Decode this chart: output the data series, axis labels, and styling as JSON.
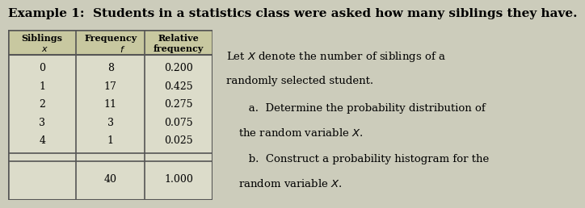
{
  "title": "Example 1:  Students in a statistics class were asked how many siblings they have.",
  "title_fontsize": 11,
  "table_headers": [
    "Siblings\n  x",
    "Frequency\n        f",
    "Relative\nfrequency"
  ],
  "table_col1": [
    "0",
    "1",
    "2",
    "3",
    "4",
    "",
    ""
  ],
  "table_col2": [
    "8",
    "17",
    "11",
    "3",
    "1",
    "",
    "40"
  ],
  "table_col3": [
    "0.200",
    "0.425",
    "0.275",
    "0.075",
    "0.025",
    "",
    "1.000"
  ],
  "right_text_lines": [
    "Let $X$ denote the number of siblings of a",
    "randomly selected student.",
    "   a.  Determine the probability distribution of",
    "the random variable $X$.",
    "   b.  Construct a probability histogram for the",
    "random variable $X$."
  ],
  "bg_color": "#e8e8d8",
  "header_bg": "#c8c8a8",
  "table_border_color": "#555555",
  "page_bg": "#d8d8c8"
}
